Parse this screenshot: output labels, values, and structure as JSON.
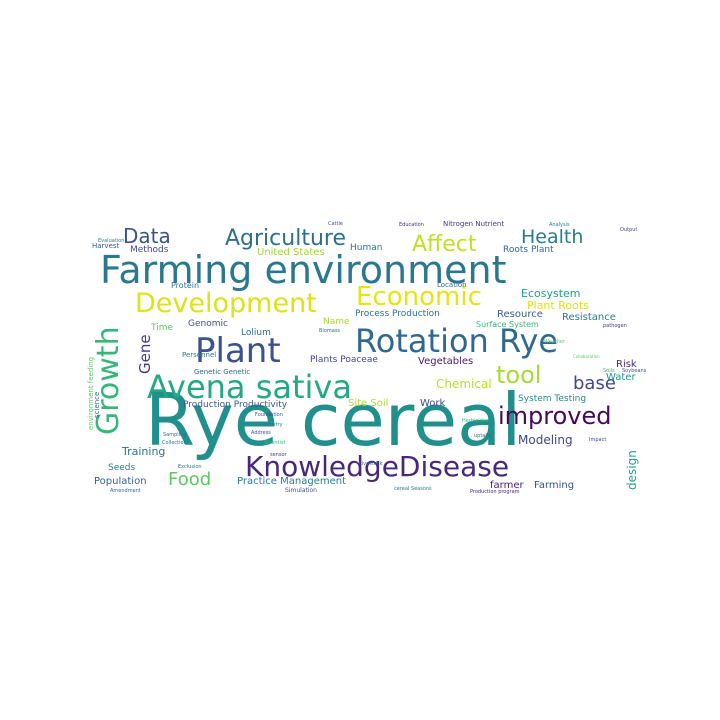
{
  "wordcloud": {
    "words": [
      {
        "text": "Rye cereal",
        "weight": 1.0,
        "color": "#21908d"
      },
      {
        "text": "Farming environment",
        "weight": 0.78,
        "color": "#2a788e"
      },
      {
        "text": "Avena sativa",
        "weight": 0.62,
        "color": "#22a884"
      },
      {
        "text": "Rotation Rye",
        "weight": 0.6,
        "color": "#31688e"
      },
      {
        "text": "Plant",
        "weight": 0.6,
        "color": "#3b528b"
      },
      {
        "text": "KnowledgeDisease",
        "weight": 0.56,
        "color": "#482878"
      },
      {
        "text": "Development",
        "weight": 0.54,
        "color": "#dde318"
      },
      {
        "text": "Economic",
        "weight": 0.54,
        "color": "#e6e419"
      },
      {
        "text": "Growth",
        "weight": 0.58,
        "color": "#35b779"
      },
      {
        "text": "improved",
        "weight": 0.44,
        "color": "#46085c"
      },
      {
        "text": "tool",
        "weight": 0.44,
        "color": "#a5db36"
      },
      {
        "text": "Affect",
        "weight": 0.4,
        "color": "#c2df23"
      },
      {
        "text": "Agriculture",
        "weight": 0.4,
        "color": "#2d708e"
      },
      {
        "text": "Health",
        "weight": 0.4,
        "color": "#2a7b8e"
      },
      {
        "text": "Data",
        "weight": 0.36,
        "color": "#3a538b"
      },
      {
        "text": "base",
        "weight": 0.34,
        "color": "#3e4a89"
      },
      {
        "text": "Food",
        "weight": 0.34,
        "color": "#5ec962"
      },
      {
        "text": "Gene",
        "weight": 0.26,
        "color": "#443983"
      },
      {
        "text": "Modeling",
        "weight": 0.22,
        "color": "#404688"
      },
      {
        "text": "design",
        "weight": 0.22,
        "color": "#1fa188"
      },
      {
        "text": "Training",
        "weight": 0.2,
        "color": "#2c728e"
      },
      {
        "text": "Population",
        "weight": 0.2,
        "color": "#33638d"
      },
      {
        "text": "farmer",
        "weight": 0.2,
        "color": "#481f70"
      },
      {
        "text": "Farming",
        "weight": 0.2,
        "color": "#3b528b"
      },
      {
        "text": "Vegetables",
        "weight": 0.18,
        "color": "#481769"
      },
      {
        "text": "Chemical",
        "weight": 0.2,
        "color": "#b8de29"
      },
      {
        "text": "Ecosystem",
        "weight": 0.18,
        "color": "#1f9e89"
      },
      {
        "text": "Plant Roots",
        "weight": 0.18,
        "color": "#dde318"
      },
      {
        "text": "Resistance",
        "weight": 0.18,
        "color": "#287d8e"
      },
      {
        "text": "Resource",
        "weight": 0.16,
        "color": "#365c8d"
      },
      {
        "text": "Risk",
        "weight": 0.16,
        "color": "#472c7a"
      },
      {
        "text": "Water",
        "weight": 0.16,
        "color": "#1f968b"
      },
      {
        "text": "Practice Management",
        "weight": 0.18,
        "color": "#277f8e"
      },
      {
        "text": "Production Productivity",
        "weight": 0.16,
        "color": "#39568c"
      },
      {
        "text": "Process Production",
        "weight": 0.16,
        "color": "#2e6e8e"
      },
      {
        "text": "Plants Poaceae",
        "weight": 0.16,
        "color": "#3f4788"
      },
      {
        "text": "Site Soil",
        "weight": 0.16,
        "color": "#addc30"
      },
      {
        "text": "Work",
        "weight": 0.16,
        "color": "#3e4989"
      },
      {
        "text": "System Testing",
        "weight": 0.16,
        "color": "#228b8d"
      },
      {
        "text": "United States",
        "weight": 0.16,
        "color": "#a0da39"
      },
      {
        "text": "Human",
        "weight": 0.14,
        "color": "#2a788e"
      },
      {
        "text": "Roots Plant",
        "weight": 0.14,
        "color": "#31688e"
      },
      {
        "text": "Methods",
        "weight": 0.16,
        "color": "#3e4989"
      },
      {
        "text": "Protein",
        "weight": 0.14,
        "color": "#2c728e"
      },
      {
        "text": "Lolium",
        "weight": 0.14,
        "color": "#2d708e"
      },
      {
        "text": "Genomic",
        "weight": 0.14,
        "color": "#3b528b"
      },
      {
        "text": "Time",
        "weight": 0.14,
        "color": "#5ec962"
      },
      {
        "text": "Name",
        "weight": 0.14,
        "color": "#a5db36"
      },
      {
        "text": "Seeds",
        "weight": 0.14,
        "color": "#2a788e"
      },
      {
        "text": "Surface System",
        "weight": 0.12,
        "color": "#35b779"
      },
      {
        "text": "Location",
        "weight": 0.1,
        "color": "#31688e"
      },
      {
        "text": "Nitrogen Nutrient",
        "weight": 0.1,
        "color": "#443983"
      },
      {
        "text": "Personnel",
        "weight": 0.1,
        "color": "#2a788e"
      },
      {
        "text": "Harvest",
        "weight": 0.1,
        "color": "#3b528b"
      },
      {
        "text": "environment feeding",
        "weight": 0.1,
        "color": "#5ec962"
      },
      {
        "text": "science",
        "weight": 0.1,
        "color": "#2c728e"
      },
      {
        "text": "Genetic Genetic",
        "weight": 0.1,
        "color": "#31688e"
      },
      {
        "text": "Simulation",
        "weight": 0.08,
        "color": "#3b528b"
      },
      {
        "text": "cereal Seasons",
        "weight": 0.08,
        "color": "#2a788e"
      },
      {
        "text": "Production program",
        "weight": 0.07,
        "color": "#481f70"
      },
      {
        "text": "Scientist",
        "weight": 0.07,
        "color": "#35b779"
      },
      {
        "text": "Biomass",
        "weight": 0.07,
        "color": "#2d708e"
      },
      {
        "text": "Output",
        "weight": 0.07,
        "color": "#3e4a89"
      },
      {
        "text": "Cattle",
        "weight": 0.06,
        "color": "#3b528b"
      },
      {
        "text": "Education",
        "weight": 0.06,
        "color": "#482878"
      },
      {
        "text": "Analysis",
        "weight": 0.06,
        "color": "#2a788e"
      },
      {
        "text": "Livestock",
        "weight": 0.06,
        "color": "#31688e"
      },
      {
        "text": "Soils",
        "weight": 0.06,
        "color": "#35b779"
      },
      {
        "text": "Soybeans",
        "weight": 0.06,
        "color": "#3b528b"
      },
      {
        "text": "Collaboration",
        "weight": 0.06,
        "color": "#5ec962"
      },
      {
        "text": "uptake",
        "weight": 0.06,
        "color": "#31688e"
      },
      {
        "text": "Impact",
        "weight": 0.06,
        "color": "#3e4989"
      },
      {
        "text": "sensor",
        "weight": 0.06,
        "color": "#443983"
      },
      {
        "text": "Evaluation",
        "weight": 0.06,
        "color": "#287d8e"
      },
      {
        "text": "Industry",
        "weight": 0.06,
        "color": "#2a788e"
      },
      {
        "text": "Address",
        "weight": 0.06,
        "color": "#3b528b"
      },
      {
        "text": "Sampling",
        "weight": 0.06,
        "color": "#31688e"
      },
      {
        "text": "Collection",
        "weight": 0.06,
        "color": "#2d708e"
      },
      {
        "text": "Herbicides",
        "weight": 0.06,
        "color": "#35b779"
      },
      {
        "text": "Exclusion",
        "weight": 0.06,
        "color": "#2c728e"
      },
      {
        "text": "Foundation",
        "weight": 0.06,
        "color": "#3b528b"
      },
      {
        "text": "Weather",
        "weight": 0.06,
        "color": "#5ec962"
      },
      {
        "text": "pathogen",
        "weight": 0.06,
        "color": "#443983"
      },
      {
        "text": "Amendment",
        "weight": 0.06,
        "color": "#31688e"
      },
      {
        "text": "Version",
        "weight": 0.06,
        "color": "#2a788e"
      }
    ]
  }
}
